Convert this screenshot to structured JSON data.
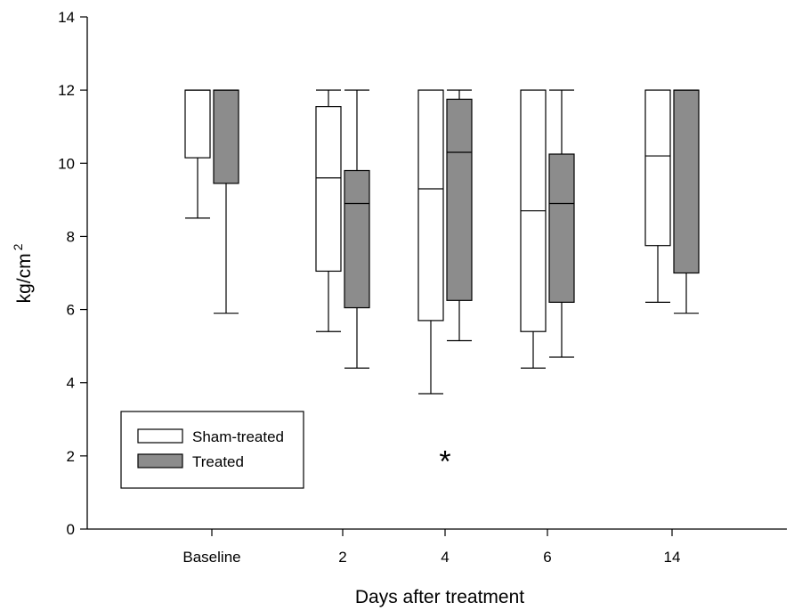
{
  "chart_data": {
    "type": "box",
    "xlabel": "Days after treatment",
    "ylabel": "kg/cm",
    "ylabel_superscript": "2",
    "ylim": [
      0,
      14
    ],
    "yticks": [
      "0",
      "2",
      "4",
      "6",
      "8",
      "10",
      "12",
      "14"
    ],
    "categories": [
      "Baseline",
      "2",
      "4",
      "6",
      "14"
    ],
    "legend_position": "lower-left",
    "series": [
      {
        "name": "Sham-treated",
        "color": "#ffffff",
        "boxes": [
          {
            "whisker_low": 8.5,
            "q1": 10.15,
            "median": 12,
            "q3": 12,
            "whisker_high": 12
          },
          {
            "whisker_low": 5.4,
            "q1": 7.05,
            "median": 9.6,
            "q3": 11.55,
            "whisker_high": 12
          },
          {
            "whisker_low": 3.7,
            "q1": 5.7,
            "median": 9.3,
            "q3": 12,
            "whisker_high": 12
          },
          {
            "whisker_low": 4.4,
            "q1": 5.4,
            "median": 8.7,
            "q3": 12,
            "whisker_high": 12
          },
          {
            "whisker_low": 6.2,
            "q1": 7.75,
            "median": 10.2,
            "q3": 12,
            "whisker_high": 12
          }
        ]
      },
      {
        "name": "Treated",
        "color": "#8c8c8c",
        "boxes": [
          {
            "whisker_low": 5.9,
            "q1": 9.45,
            "median": 12,
            "q3": 12,
            "whisker_high": 12
          },
          {
            "whisker_low": 4.4,
            "q1": 6.05,
            "median": 8.9,
            "q3": 9.8,
            "whisker_high": 12
          },
          {
            "whisker_low": 5.15,
            "q1": 6.25,
            "median": 10.3,
            "q3": 11.75,
            "whisker_high": 12
          },
          {
            "whisker_low": 4.7,
            "q1": 6.2,
            "median": 8.9,
            "q3": 10.25,
            "whisker_high": 12
          },
          {
            "whisker_low": 5.9,
            "q1": 7.0,
            "median": 12,
            "q3": 12,
            "whisker_high": 12
          }
        ]
      }
    ],
    "annotations": [
      {
        "text": "*",
        "category": "4",
        "y": 2.2
      }
    ]
  }
}
